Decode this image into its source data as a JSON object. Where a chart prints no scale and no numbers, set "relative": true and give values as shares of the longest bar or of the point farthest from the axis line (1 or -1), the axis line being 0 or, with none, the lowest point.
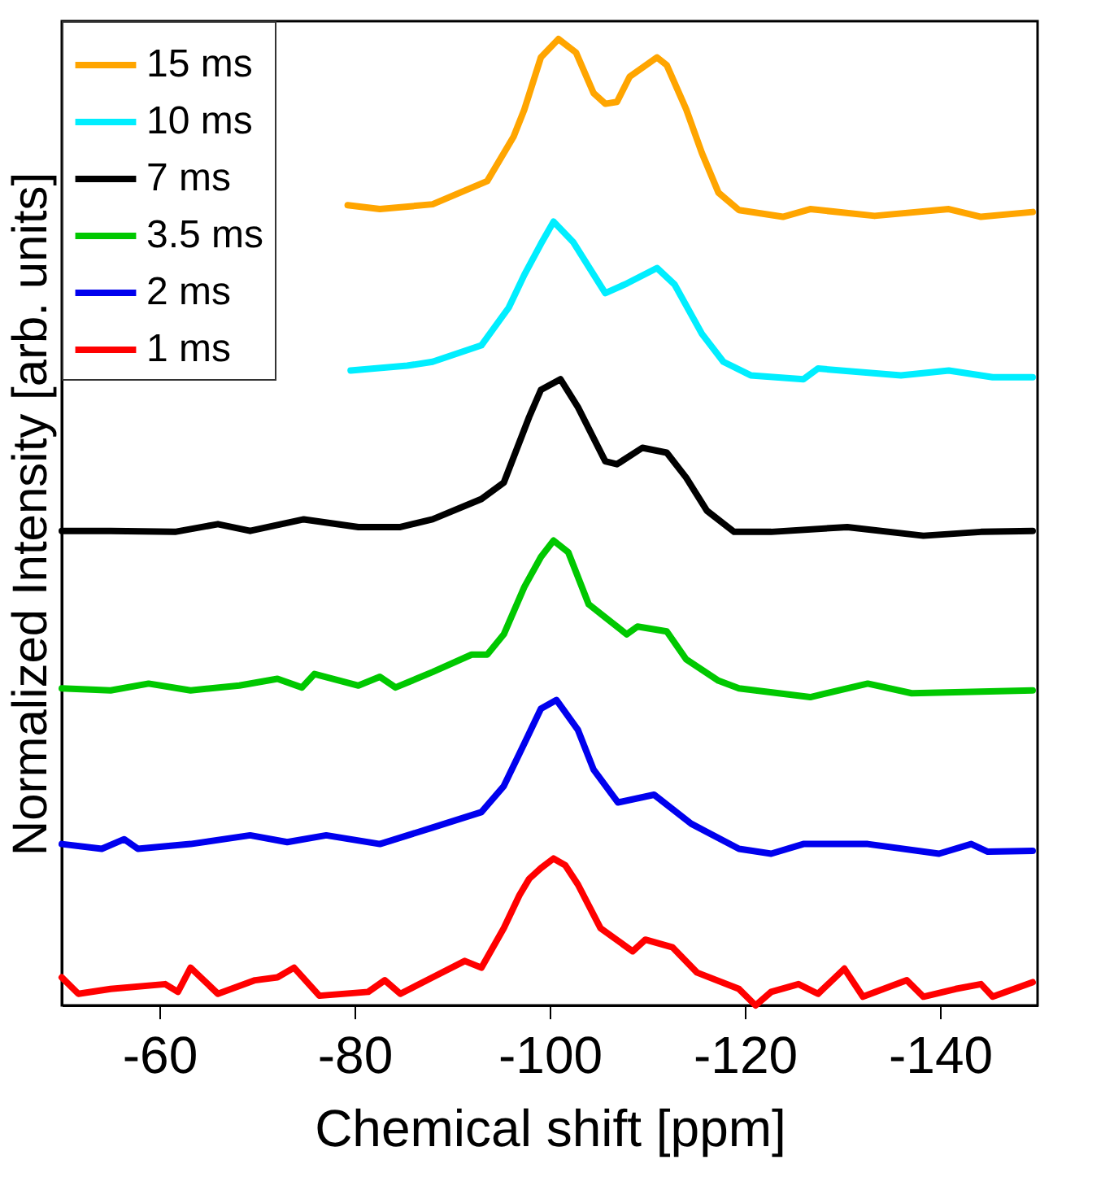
{
  "chart_data": {
    "type": "line",
    "relative": true,
    "xlabel": "Chemical shift [ppm]",
    "ylabel": "Normalized Intensity [arb. units]",
    "xlim": [
      -50,
      -150
    ],
    "xticks": [
      -60,
      -80,
      -100,
      -120,
      -140
    ],
    "grid": false,
    "legend": "top left",
    "line_style": "solid",
    "marker": "none",
    "series": [
      {
        "name": "15 ms",
        "color": "#ffa500",
        "x": [
          -79.3,
          -82.6,
          -88.0,
          -93.6,
          -96.3,
          -97.4,
          -99.1,
          -100.9,
          -102.7,
          -104.5,
          -105.7,
          -106.9,
          -108.2,
          -111.0,
          -112.0,
          -114.0,
          -115.6,
          -117.3,
          -119.4,
          -123.9,
          -126.7,
          -133.3,
          -140.9,
          -144.2,
          -149.5
        ],
        "values": [
          0.828,
          0.824,
          0.829,
          0.853,
          0.899,
          0.927,
          0.981,
          1.0,
          0.986,
          0.944,
          0.933,
          0.935,
          0.961,
          0.981,
          0.973,
          0.927,
          0.882,
          0.841,
          0.823,
          0.816,
          0.824,
          0.817,
          0.824,
          0.816,
          0.821
        ]
      },
      {
        "name": "10 ms",
        "color": "#00eeff",
        "x": [
          -79.6,
          -85.4,
          -88.0,
          -93.0,
          -95.8,
          -97.4,
          -99.1,
          -100.4,
          -102.4,
          -105.7,
          -107.9,
          -111.0,
          -112.8,
          -115.6,
          -117.8,
          -120.6,
          -126.0,
          -127.5,
          -136.0,
          -140.9,
          -145.4,
          -149.5
        ],
        "values": [
          0.657,
          0.662,
          0.666,
          0.683,
          0.722,
          0.756,
          0.788,
          0.811,
          0.79,
          0.737,
          0.747,
          0.763,
          0.746,
          0.695,
          0.666,
          0.652,
          0.648,
          0.659,
          0.652,
          0.657,
          0.65,
          0.65
        ]
      },
      {
        "name": "7 ms",
        "color": "#000000",
        "x": [
          -50.0,
          -55.0,
          -61.6,
          -66.0,
          -69.3,
          -74.8,
          -80.4,
          -84.7,
          -88.0,
          -93.0,
          -95.3,
          -97.9,
          -99.1,
          -101.1,
          -102.9,
          -105.7,
          -106.9,
          -109.5,
          -112.0,
          -114.0,
          -116.1,
          -118.9,
          -122.7,
          -130.5,
          -138.3,
          -144.2,
          -149.5
        ],
        "values": [
          0.491,
          0.491,
          0.49,
          0.498,
          0.491,
          0.503,
          0.495,
          0.495,
          0.503,
          0.524,
          0.541,
          0.609,
          0.637,
          0.648,
          0.619,
          0.563,
          0.56,
          0.577,
          0.572,
          0.546,
          0.512,
          0.49,
          0.49,
          0.495,
          0.486,
          0.49,
          0.491
        ]
      },
      {
        "name": "3.5 ms",
        "color": "#00c800",
        "x": [
          -50.0,
          -55.0,
          -58.9,
          -63.2,
          -68.2,
          -72.1,
          -74.6,
          -75.9,
          -80.4,
          -82.6,
          -84.2,
          -88.0,
          -92.0,
          -93.6,
          -95.3,
          -97.4,
          -99.1,
          -100.4,
          -101.9,
          -104.0,
          -107.9,
          -109.0,
          -112.0,
          -114.0,
          -117.3,
          -119.4,
          -126.7,
          -132.6,
          -137.1,
          -149.5
        ],
        "values": [
          0.328,
          0.326,
          0.333,
          0.326,
          0.331,
          0.338,
          0.329,
          0.343,
          0.331,
          0.34,
          0.329,
          0.345,
          0.363,
          0.363,
          0.384,
          0.433,
          0.464,
          0.481,
          0.469,
          0.415,
          0.384,
          0.392,
          0.387,
          0.358,
          0.336,
          0.328,
          0.319,
          0.333,
          0.323,
          0.326
        ]
      },
      {
        "name": "2 ms",
        "color": "#0000ee",
        "x": [
          -50.0,
          -54.1,
          -56.4,
          -57.8,
          -63.2,
          -69.3,
          -73.1,
          -77.1,
          -82.6,
          -88.0,
          -93.0,
          -95.3,
          -97.4,
          -99.1,
          -100.7,
          -102.9,
          -104.5,
          -107.0,
          -110.7,
          -114.5,
          -119.4,
          -122.7,
          -126.0,
          -132.6,
          -139.9,
          -143.2,
          -144.9,
          -149.5
        ],
        "values": [
          0.167,
          0.162,
          0.172,
          0.162,
          0.167,
          0.176,
          0.169,
          0.176,
          0.167,
          0.184,
          0.2,
          0.227,
          0.271,
          0.307,
          0.316,
          0.285,
          0.244,
          0.21,
          0.218,
          0.188,
          0.162,
          0.157,
          0.167,
          0.167,
          0.157,
          0.167,
          0.159,
          0.16
        ]
      },
      {
        "name": "1 ms",
        "color": "#ff0000",
        "x": [
          -50.0,
          -51.7,
          -55.0,
          -60.6,
          -61.9,
          -63.2,
          -66.0,
          -69.8,
          -72.1,
          -73.8,
          -76.4,
          -81.4,
          -83.1,
          -84.7,
          -88.0,
          -91.3,
          -93.0,
          -95.3,
          -96.9,
          -97.9,
          -99.1,
          -100.4,
          -101.6,
          -102.9,
          -105.2,
          -108.5,
          -109.8,
          -112.6,
          -115.1,
          -119.4,
          -121.1,
          -122.7,
          -125.5,
          -127.5,
          -130.2,
          -132.1,
          -136.6,
          -138.3,
          -141.6,
          -144.2,
          -145.4,
          -149.5
        ],
        "values": [
          0.029,
          0.012,
          0.017,
          0.022,
          0.014,
          0.039,
          0.012,
          0.026,
          0.029,
          0.039,
          0.01,
          0.014,
          0.026,
          0.012,
          0.029,
          0.046,
          0.039,
          0.08,
          0.114,
          0.131,
          0.142,
          0.152,
          0.145,
          0.125,
          0.08,
          0.056,
          0.068,
          0.06,
          0.034,
          0.017,
          0.0,
          0.014,
          0.022,
          0.012,
          0.038,
          0.009,
          0.026,
          0.009,
          0.017,
          0.022,
          0.009,
          0.024
        ]
      }
    ]
  }
}
